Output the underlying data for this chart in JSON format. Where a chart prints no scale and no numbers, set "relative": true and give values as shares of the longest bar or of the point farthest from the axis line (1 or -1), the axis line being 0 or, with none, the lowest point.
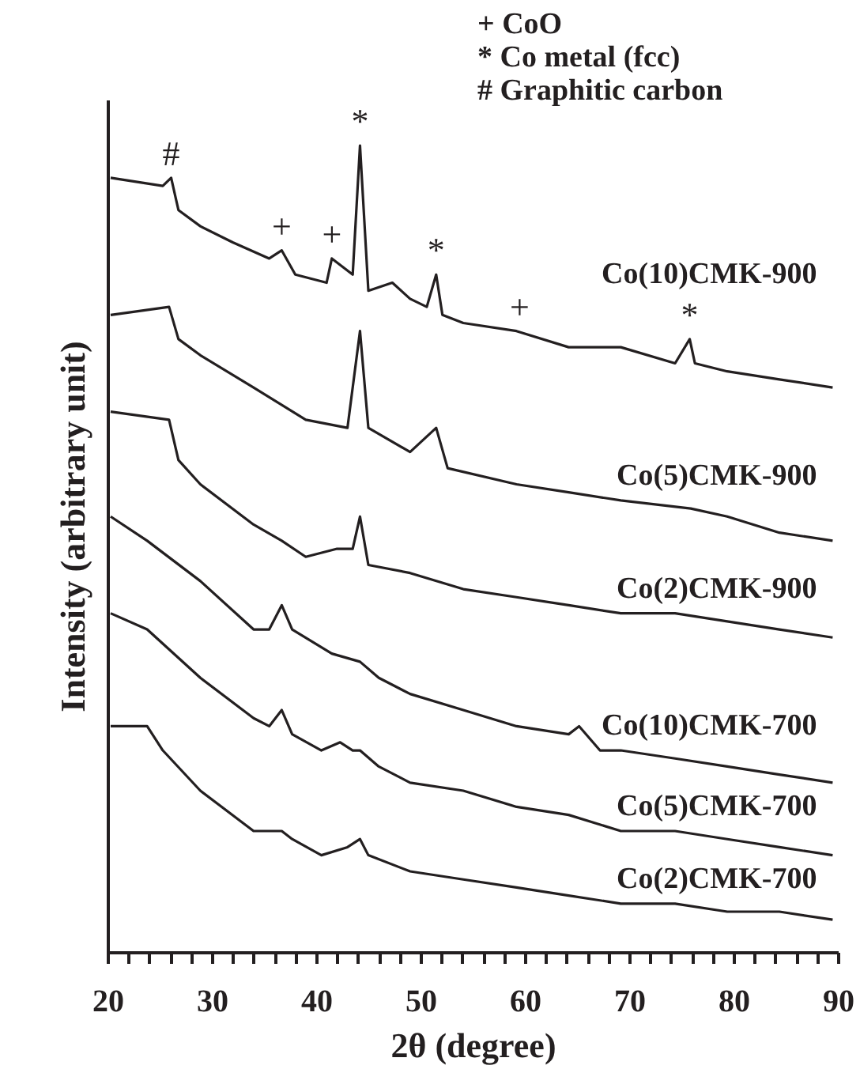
{
  "chart_data": {
    "type": "line",
    "relative": true,
    "xlabel": "2θ (degree)",
    "ylabel": "Intensity (arbitrary unit)",
    "xlim": [
      20,
      90
    ],
    "xticks": [
      20,
      {
        "value": 22,
        "label": null
      },
      {
        "value": 24,
        "label": null
      },
      {
        "value": 26,
        "label": null
      },
      {
        "value": 28,
        "label": null
      },
      30,
      {
        "value": 32,
        "label": null
      },
      {
        "value": 34,
        "label": null
      },
      {
        "value": 36,
        "label": null
      },
      {
        "value": 38,
        "label": null
      },
      40,
      {
        "value": 42,
        "label": null
      },
      {
        "value": 44,
        "label": null
      },
      {
        "value": 46,
        "label": null
      },
      {
        "value": 48,
        "label": null
      },
      50,
      {
        "value": 52,
        "label": null
      },
      {
        "value": 54,
        "label": null
      },
      {
        "value": 56,
        "label": null
      },
      {
        "value": 58,
        "label": null
      },
      60,
      {
        "value": 62,
        "label": null
      },
      {
        "value": 64,
        "label": null
      },
      {
        "value": 66,
        "label": null
      },
      {
        "value": 68,
        "label": null
      },
      70,
      {
        "value": 72,
        "label": null
      },
      {
        "value": 74,
        "label": null
      },
      {
        "value": 76,
        "label": null
      },
      {
        "value": 78,
        "label": null
      },
      80,
      {
        "value": 82,
        "label": null
      },
      {
        "value": 84,
        "label": null
      },
      {
        "value": 86,
        "label": null
      },
      {
        "value": 88,
        "label": null
      },
      90
    ],
    "grid": false,
    "marker": "none",
    "line_style": "solid",
    "annotations": [
      "+ CoO",
      "* Co metal (fcc)",
      "# Graphitic carbon",
      {
        "text": "#",
        "x": 26.1,
        "y": 0.96
      },
      {
        "text": "+",
        "x": 36.7,
        "y": 0.87
      },
      {
        "text": "+",
        "x": 41.5,
        "y": 0.86
      },
      {
        "text": "*",
        "x": 44.2,
        "y": 1.0
      },
      {
        "text": "*",
        "x": 51.5,
        "y": 0.84
      },
      {
        "text": "+",
        "x": 59.5,
        "y": 0.77
      },
      {
        "text": "*",
        "x": 75.8,
        "y": 0.76
      }
    ],
    "series": [
      {
        "name": "Co(10)CMK-900",
        "color": "#231f20",
        "x": [
          20.3,
          25.3,
          26.1,
          26.8,
          28.9,
          32,
          35.5,
          36.7,
          38,
          41,
          41.5,
          43.5,
          44.2,
          45,
          47.3,
          49,
          50.6,
          51.5,
          52.1,
          54.1,
          59.2,
          64.2,
          69.2,
          74.4,
          75.8,
          76.3,
          79.4,
          84.4,
          89.5
        ],
        "values": [
          0.96,
          0.95,
          0.96,
          0.92,
          0.9,
          0.88,
          0.86,
          0.87,
          0.84,
          0.83,
          0.86,
          0.84,
          1.0,
          0.82,
          0.83,
          0.81,
          0.8,
          0.84,
          0.79,
          0.78,
          0.77,
          0.75,
          0.75,
          0.73,
          0.76,
          0.73,
          0.72,
          0.71,
          0.7
        ]
      },
      {
        "name": "Co(5)CMK-900",
        "color": "#231f20",
        "x": [
          20.3,
          25.9,
          26.8,
          28.9,
          34,
          39,
          43,
          44.2,
          45,
          49,
          51.5,
          52.6,
          59.2,
          64.2,
          69.2,
          75.9,
          79.4,
          84.4,
          89.5
        ],
        "values": [
          0.79,
          0.8,
          0.76,
          0.74,
          0.7,
          0.66,
          0.65,
          0.77,
          0.65,
          0.62,
          0.65,
          0.6,
          0.58,
          0.57,
          0.56,
          0.55,
          0.54,
          0.52,
          0.51
        ]
      },
      {
        "name": "Co(2)CMK-900",
        "color": "#231f20",
        "x": [
          20.3,
          25.9,
          26.8,
          28.9,
          34,
          36.7,
          39,
          42,
          43.5,
          44.2,
          45,
          49,
          54.1,
          59.2,
          64.2,
          69.2,
          74.4,
          79.4,
          84.4,
          89.5
        ],
        "values": [
          0.67,
          0.66,
          0.61,
          0.58,
          0.53,
          0.51,
          0.49,
          0.5,
          0.5,
          0.54,
          0.48,
          0.47,
          0.45,
          0.44,
          0.43,
          0.42,
          0.42,
          0.41,
          0.4,
          0.39
        ]
      },
      {
        "name": "Co(10)CMK-700",
        "color": "#231f20",
        "x": [
          20.3,
          23.8,
          28.9,
          34,
          35.5,
          36.7,
          37.7,
          41.5,
          44.2,
          46,
          49,
          54.1,
          59.2,
          64.2,
          65.2,
          67.2,
          69.2,
          74.4,
          79.4,
          84.4,
          89.5
        ],
        "values": [
          0.54,
          0.51,
          0.46,
          0.4,
          0.4,
          0.43,
          0.4,
          0.37,
          0.36,
          0.34,
          0.32,
          0.3,
          0.28,
          0.27,
          0.28,
          0.25,
          0.25,
          0.24,
          0.23,
          0.22,
          0.21
        ]
      },
      {
        "name": "Co(5)CMK-700",
        "color": "#231f20",
        "x": [
          20.3,
          23.8,
          28.9,
          34,
          35.5,
          36.7,
          37.7,
          40.5,
          42.3,
          43.5,
          44.2,
          46,
          49,
          54.1,
          59.2,
          64.2,
          69.2,
          74.4,
          79.4,
          84.4,
          89.5
        ],
        "values": [
          0.42,
          0.4,
          0.34,
          0.29,
          0.28,
          0.3,
          0.27,
          0.25,
          0.26,
          0.25,
          0.25,
          0.23,
          0.21,
          0.2,
          0.18,
          0.17,
          0.15,
          0.15,
          0.14,
          0.13,
          0.12
        ]
      },
      {
        "name": "Co(2)CMK-700",
        "color": "#231f20",
        "x": [
          20.3,
          23.8,
          25.3,
          28.9,
          34,
          36.7,
          37.7,
          40.5,
          43,
          44.2,
          45,
          49,
          54.1,
          59.2,
          64.2,
          69.2,
          74.4,
          79.4,
          84.4,
          89.5
        ],
        "values": [
          0.28,
          0.28,
          0.25,
          0.2,
          0.15,
          0.15,
          0.14,
          0.12,
          0.13,
          0.14,
          0.12,
          0.1,
          0.09,
          0.08,
          0.07,
          0.06,
          0.06,
          0.05,
          0.05,
          0.04
        ]
      }
    ]
  }
}
